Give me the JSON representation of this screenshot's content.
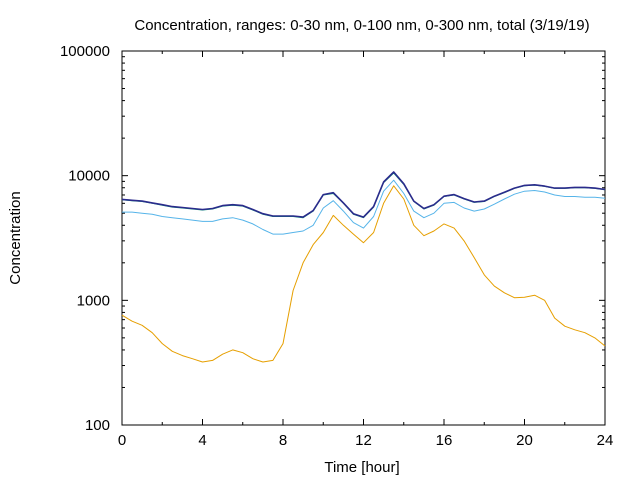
{
  "chart_data": {
    "type": "line",
    "title": "Concentration, ranges: 0-30 nm, 0-100 nm, 0-300 nm, total (3/19/19)",
    "xlabel": "Time [hour]",
    "ylabel": "Concentration",
    "xlim": [
      0,
      24
    ],
    "ylim": [
      100,
      100000
    ],
    "yscale": "log",
    "xticks": [
      "0",
      "4",
      "8",
      "12",
      "16",
      "20",
      "24"
    ],
    "yticks": [
      "100",
      "1000",
      "10000",
      "100000"
    ],
    "grid": false,
    "legend": "none",
    "series": [
      {
        "color": "#e69f00",
        "x": [
          0,
          0.5,
          1,
          1.5,
          2,
          2.5,
          3,
          3.5,
          4,
          4.5,
          5,
          5.5,
          6,
          6.5,
          7,
          7.5,
          8,
          8.5,
          9,
          9.5,
          10,
          10.5,
          11,
          11.5,
          12,
          12.5,
          13,
          13.5,
          14,
          14.5,
          15,
          15.5,
          16,
          16.5,
          17,
          17.5,
          18,
          18.5,
          19,
          19.5,
          20,
          20.5,
          21,
          21.5,
          22,
          22.5,
          23,
          23.5,
          24
        ],
        "values": [
          760,
          680,
          630,
          550,
          450,
          390,
          360,
          340,
          320,
          330,
          370,
          400,
          380,
          340,
          320,
          330,
          450,
          1200,
          2000,
          2800,
          3500,
          4800,
          4000,
          3400,
          2900,
          3500,
          6000,
          8300,
          6500,
          4000,
          3300,
          3600,
          4100,
          3800,
          3000,
          2200,
          1600,
          1300,
          1150,
          1050,
          1060,
          1100,
          1000,
          720,
          620,
          580,
          550,
          500,
          430
        ]
      },
      {
        "color": "#56b4e9",
        "x": [
          0,
          0.5,
          1,
          1.5,
          2,
          2.5,
          3,
          3.5,
          4,
          4.5,
          5,
          5.5,
          6,
          6.5,
          7,
          7.5,
          8,
          8.5,
          9,
          9.5,
          10,
          10.5,
          11,
          11.5,
          12,
          12.5,
          13,
          13.5,
          14,
          14.5,
          15,
          15.5,
          16,
          16.5,
          17,
          17.5,
          18,
          18.5,
          19,
          19.5,
          20,
          20.5,
          21,
          21.5,
          22,
          22.5,
          23,
          23.5,
          24
        ],
        "values": [
          5100,
          5100,
          5000,
          4900,
          4700,
          4600,
          4500,
          4400,
          4300,
          4300,
          4500,
          4600,
          4400,
          4100,
          3700,
          3400,
          3400,
          3500,
          3600,
          4000,
          5500,
          6300,
          5200,
          4200,
          3800,
          4700,
          7500,
          9200,
          7200,
          5200,
          4600,
          5000,
          6000,
          6100,
          5500,
          5200,
          5400,
          5900,
          6500,
          7100,
          7500,
          7600,
          7400,
          7000,
          6800,
          6800,
          6700,
          6700,
          6600
        ]
      },
      {
        "color": "#009e73",
        "x": [
          0,
          0.5,
          1,
          1.5,
          2,
          2.5,
          3,
          3.5,
          4,
          4.5,
          5,
          5.5,
          6,
          6.5,
          7,
          7.5,
          8,
          8.5,
          9,
          9.5,
          10,
          10.5,
          11,
          11.5,
          12,
          12.5,
          13,
          13.5,
          14,
          14.5,
          15,
          15.5,
          16,
          16.5,
          17,
          17.5,
          18,
          18.5,
          19,
          19.5,
          20,
          20.5,
          21,
          21.5,
          22,
          22.5,
          23,
          23.5,
          24
        ],
        "values": [
          6400,
          6300,
          6200,
          6000,
          5800,
          5600,
          5500,
          5400,
          5300,
          5400,
          5700,
          5800,
          5700,
          5300,
          4900,
          4700,
          4700,
          4700,
          4600,
          5200,
          7000,
          7200,
          6000,
          4900,
          4600,
          5600,
          8800,
          10500,
          8500,
          6200,
          5400,
          5800,
          6800,
          7000,
          6500,
          6100,
          6200,
          6800,
          7300,
          7900,
          8300,
          8400,
          8200,
          7900,
          7900,
          8000,
          8000,
          7900,
          7700
        ]
      },
      {
        "color": "#2b2b8c",
        "x": [
          0,
          0.5,
          1,
          1.5,
          2,
          2.5,
          3,
          3.5,
          4,
          4.5,
          5,
          5.5,
          6,
          6.5,
          7,
          7.5,
          8,
          8.5,
          9,
          9.5,
          10,
          10.5,
          11,
          11.5,
          12,
          12.5,
          13,
          13.5,
          14,
          14.5,
          15,
          15.5,
          16,
          16.5,
          17,
          17.5,
          18,
          18.5,
          19,
          19.5,
          20,
          20.5,
          21,
          21.5,
          22,
          22.5,
          23,
          23.5,
          24
        ],
        "values": [
          6450,
          6350,
          6250,
          6050,
          5850,
          5650,
          5550,
          5450,
          5350,
          5450,
          5750,
          5850,
          5750,
          5350,
          4950,
          4750,
          4750,
          4750,
          4650,
          5250,
          7050,
          7300,
          6050,
          4950,
          4650,
          5650,
          8900,
          10700,
          8600,
          6250,
          5450,
          5850,
          6850,
          7050,
          6550,
          6150,
          6250,
          6850,
          7350,
          7950,
          8350,
          8450,
          8250,
          7950,
          7950,
          8050,
          8050,
          7950,
          7750
        ]
      }
    ]
  }
}
